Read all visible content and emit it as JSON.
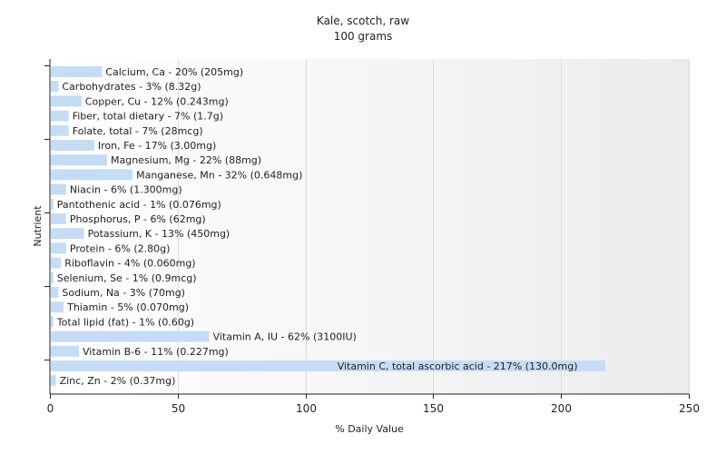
{
  "chart_data": {
    "type": "bar",
    "orientation": "horizontal",
    "title": "Kale, scotch, raw",
    "subtitle": "100 grams",
    "xlabel": "% Daily Value",
    "ylabel": "Nutrient",
    "xlim": [
      0,
      250
    ],
    "xticks": [
      0,
      50,
      100,
      150,
      200,
      250
    ],
    "grid": true,
    "bar_color": "#c6dcf5",
    "categories": [
      "Calcium, Ca",
      "Carbohydrates",
      "Copper, Cu",
      "Fiber, total dietary",
      "Folate, total",
      "Iron, Fe",
      "Magnesium, Mg",
      "Manganese, Mn",
      "Niacin",
      "Pantothenic acid",
      "Phosphorus, P",
      "Potassium, K",
      "Protein",
      "Riboflavin",
      "Selenium, Se",
      "Sodium, Na",
      "Thiamin",
      "Total lipid (fat)",
      "Vitamin A, IU",
      "Vitamin B-6",
      "Vitamin C, total ascorbic acid",
      "Zinc, Zn"
    ],
    "values": [
      20,
      3,
      12,
      7,
      7,
      17,
      22,
      32,
      6,
      1,
      6,
      13,
      6,
      4,
      1,
      3,
      5,
      1,
      62,
      11,
      217,
      2
    ],
    "labels": [
      "Calcium, Ca - 20% (205mg)",
      "Carbohydrates - 3% (8.32g)",
      "Copper, Cu - 12% (0.243mg)",
      "Fiber, total dietary - 7% (1.7g)",
      "Folate, total - 7% (28mcg)",
      "Iron, Fe - 17% (3.00mg)",
      "Magnesium, Mg - 22% (88mg)",
      "Manganese, Mn - 32% (0.648mg)",
      "Niacin - 6% (1.300mg)",
      "Pantothenic acid - 1% (0.076mg)",
      "Phosphorus, P - 6% (62mg)",
      "Potassium, K - 13% (450mg)",
      "Protein - 6% (2.80g)",
      "Riboflavin - 4% (0.060mg)",
      "Selenium, Se - 1% (0.9mcg)",
      "Sodium, Na - 3% (70mg)",
      "Thiamin - 5% (0.070mg)",
      "Total lipid (fat) - 1% (0.60g)",
      "Vitamin A, IU - 62% (3100IU)",
      "Vitamin B-6 - 11% (0.227mg)",
      "Vitamin C, total ascorbic acid - 217% (130.0mg)",
      "Zinc, Zn - 2% (0.37mg)"
    ]
  }
}
